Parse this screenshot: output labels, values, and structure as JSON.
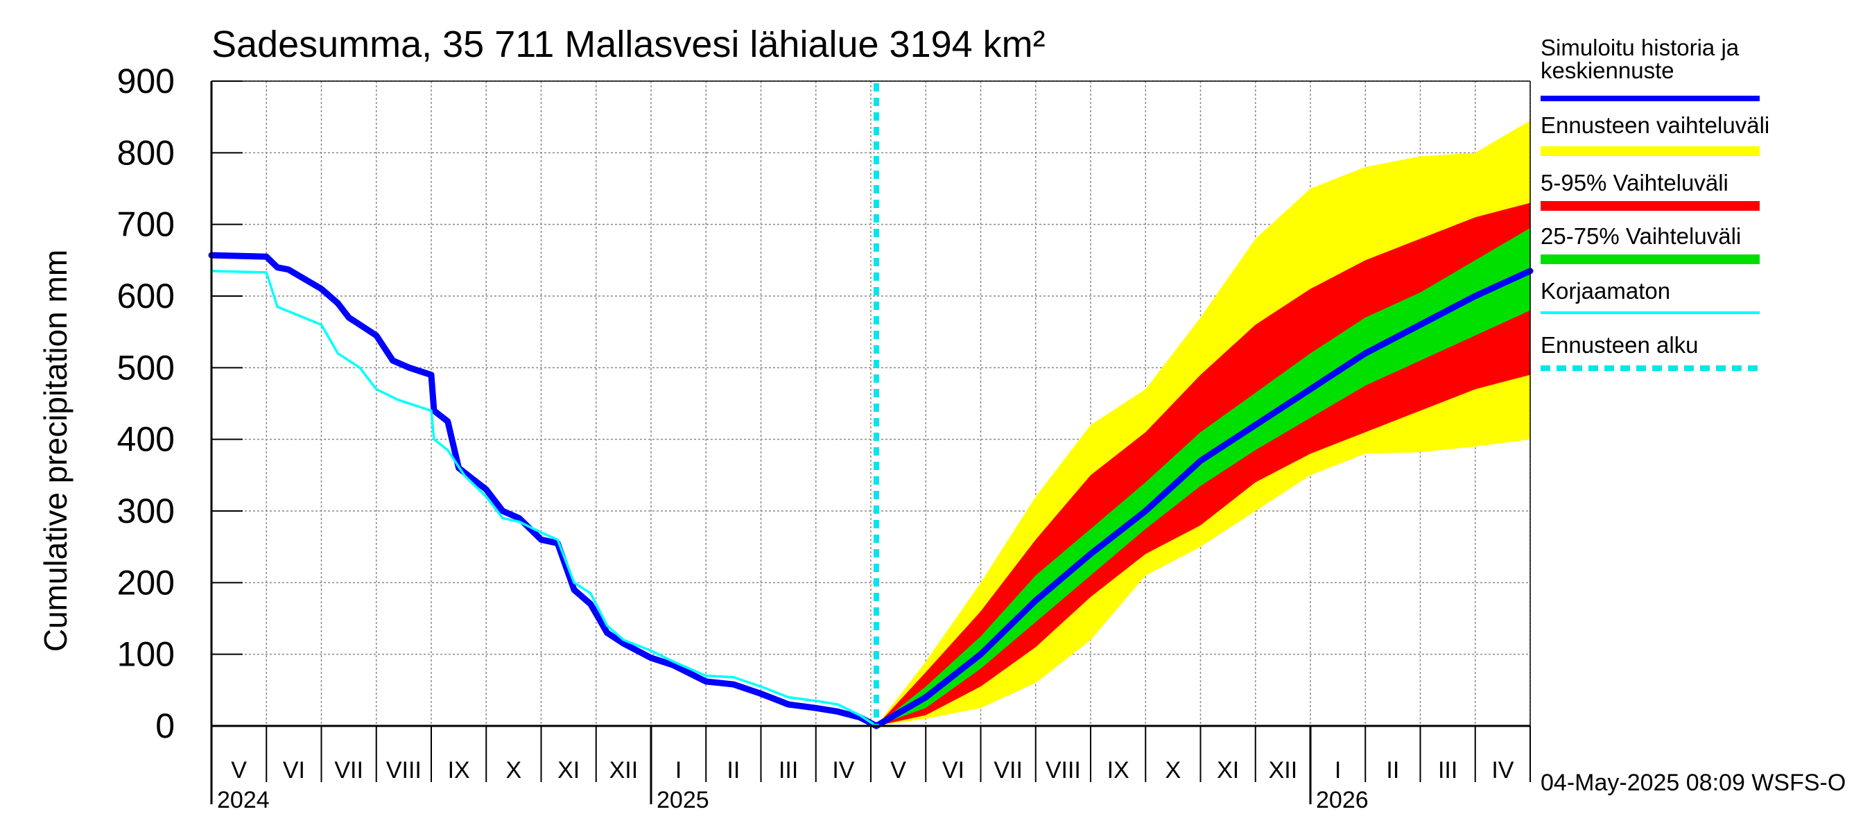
{
  "chart_data": {
    "type": "line",
    "title": "Sadesumma, 35 711 Mallasvesi lähialue 3194 km²",
    "ylabel": "Cumulative precipitation   mm",
    "ylim": [
      0,
      900
    ],
    "yticks": [
      0,
      100,
      200,
      300,
      400,
      500,
      600,
      700,
      800,
      900
    ],
    "grid": true,
    "x_unit": "months since 1 May 2024",
    "xlim": [
      0,
      24
    ],
    "month_labels": [
      "V",
      "VI",
      "VII",
      "VIII",
      "IX",
      "X",
      "XI",
      "XII",
      "I",
      "II",
      "III",
      "IV",
      "V",
      "VI",
      "VII",
      "VIII",
      "IX",
      "X",
      "XI",
      "XII",
      "I",
      "II",
      "III",
      "IV"
    ],
    "year_labels": [
      {
        "label": "2024",
        "at": 0
      },
      {
        "label": "2025",
        "at": 8
      },
      {
        "label": "2026",
        "at": 20
      }
    ],
    "forecast_start": 12.1,
    "footer": "04-May-2025 08:09 WSFS-O",
    "legend": [
      {
        "label": "Simuloitu historia ja keskiennuste",
        "color": "#0000ff",
        "style": "thick"
      },
      {
        "label": "Ennusteen vaihteluväli",
        "color": "#ffff00",
        "style": "band"
      },
      {
        "label": "5-95% Vaihteluväli",
        "color": "#ff0000",
        "style": "band"
      },
      {
        "label": "25-75% Vaihteluväli",
        "color": "#00e000",
        "style": "band"
      },
      {
        "label": "Korjaamaton",
        "color": "#00ffff",
        "style": "thin"
      },
      {
        "label": "Ennusteen alku",
        "color": "#00e5ee",
        "style": "dashed"
      }
    ],
    "series": [
      {
        "name": "Simuloitu historia ja keskiennuste (historia)",
        "color": "#0000ff",
        "x": [
          0,
          1,
          1.2,
          1.4,
          2.0,
          2.3,
          2.5,
          3.0,
          3.3,
          3.6,
          4.0,
          4.05,
          4.3,
          4.5,
          5.0,
          5.3,
          5.6,
          6.0,
          6.3,
          6.6,
          6.9,
          7.2,
          7.5,
          8.0,
          8.4,
          9.0,
          9.5,
          10.0,
          10.5,
          11.0,
          11.4,
          11.8,
          12.1
        ],
        "y": [
          657,
          655,
          640,
          637,
          610,
          590,
          570,
          545,
          510,
          500,
          490,
          440,
          425,
          360,
          330,
          300,
          290,
          260,
          255,
          190,
          170,
          130,
          115,
          95,
          85,
          62,
          58,
          45,
          30,
          25,
          20,
          12,
          0
        ]
      },
      {
        "name": "Korjaamaton",
        "color": "#00ffff",
        "x": [
          0,
          1,
          1.2,
          2.0,
          2.3,
          2.7,
          3.0,
          3.4,
          4.0,
          4.05,
          4.3,
          4.6,
          5.0,
          5.3,
          5.6,
          6.0,
          6.3,
          6.6,
          6.9,
          7.2,
          7.5,
          8.0,
          8.4,
          9.0,
          9.5,
          10.0,
          10.5,
          11.0,
          11.4,
          11.8,
          12.1
        ],
        "y": [
          635,
          633,
          585,
          560,
          520,
          500,
          470,
          455,
          440,
          400,
          385,
          350,
          320,
          290,
          285,
          270,
          260,
          200,
          185,
          140,
          120,
          105,
          90,
          70,
          68,
          55,
          40,
          35,
          30,
          15,
          0
        ]
      },
      {
        "name": "Keskiennuste",
        "color": "#0000ff",
        "x": [
          12.1,
          13,
          14,
          15,
          16,
          17,
          18,
          19,
          20,
          21,
          22,
          23,
          24
        ],
        "y": [
          0,
          40,
          100,
          175,
          240,
          300,
          370,
          420,
          470,
          520,
          560,
          600,
          635
        ]
      }
    ],
    "bands": [
      {
        "name": "Ennusteen vaihteluväli",
        "color": "#ffff00",
        "x": [
          12.1,
          13,
          14,
          15,
          16,
          17,
          18,
          19,
          20,
          21,
          22,
          23,
          24
        ],
        "lower": [
          0,
          10,
          25,
          60,
          120,
          210,
          250,
          300,
          350,
          380,
          382,
          390,
          400
        ],
        "upper": [
          0,
          90,
          200,
          320,
          420,
          470,
          570,
          680,
          750,
          780,
          795,
          800,
          845
        ]
      },
      {
        "name": "5-95% Vaihteluväli",
        "color": "#ff0000",
        "x": [
          12.1,
          13,
          14,
          15,
          16,
          17,
          18,
          19,
          20,
          21,
          22,
          23,
          24
        ],
        "lower": [
          0,
          15,
          55,
          110,
          180,
          240,
          280,
          340,
          380,
          410,
          440,
          470,
          490
        ],
        "upper": [
          0,
          75,
          160,
          260,
          350,
          410,
          490,
          560,
          610,
          650,
          680,
          710,
          730
        ]
      },
      {
        "name": "25-75% Vaihteluväli",
        "color": "#00e000",
        "x": [
          12.1,
          13,
          14,
          15,
          16,
          17,
          18,
          19,
          20,
          21,
          22,
          23,
          24
        ],
        "lower": [
          0,
          25,
          80,
          145,
          210,
          275,
          335,
          385,
          430,
          475,
          510,
          545,
          580
        ],
        "upper": [
          0,
          55,
          125,
          210,
          275,
          340,
          410,
          465,
          520,
          570,
          605,
          650,
          695
        ]
      }
    ]
  }
}
